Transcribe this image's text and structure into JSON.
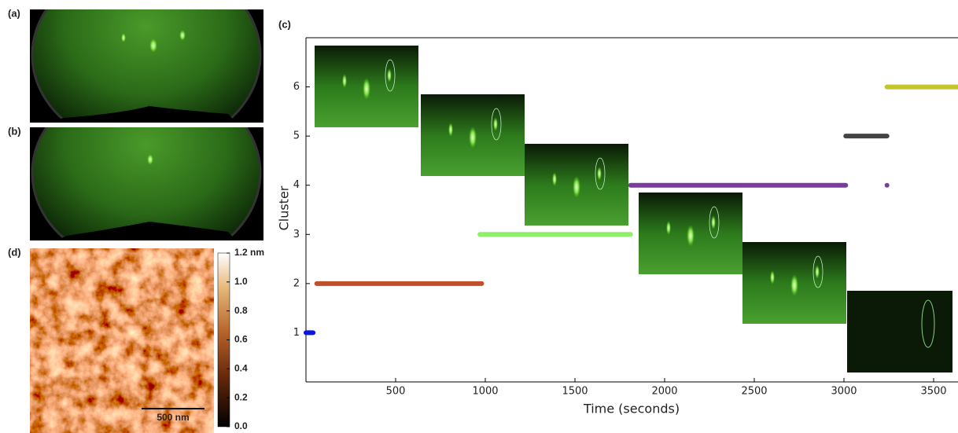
{
  "panel_labels": [
    "(a)",
    "(b)",
    "(c)",
    "(d)"
  ],
  "afm": {
    "scale_bar": "500 nm",
    "colorbar": {
      "lim": [
        0,
        1.2
      ],
      "ticks": [
        {
          "value": 0,
          "label": "0.0"
        },
        {
          "value": 0.2,
          "label": "0.2"
        },
        {
          "value": 0.4,
          "label": "0.4"
        },
        {
          "value": 0.6,
          "label": "0.6"
        },
        {
          "value": 0.8,
          "label": "0.8"
        },
        {
          "value": 1.0,
          "label": "1.0"
        },
        {
          "value": 1.2,
          "label": "1.2 nm"
        }
      ]
    }
  },
  "chart_data": {
    "type": "segments",
    "xlabel": "Time (seconds)",
    "ylabel": "Cluster",
    "xlim": [
      0,
      3636
    ],
    "ylim": [
      0,
      7
    ],
    "xticks": [
      500,
      1000,
      1500,
      2000,
      2500,
      3000,
      3500
    ],
    "yticks": [
      1,
      2,
      3,
      4,
      5,
      6
    ],
    "segments": [
      {
        "color": "#0a14e6",
        "x": [
          0,
          40
        ],
        "y": 1
      },
      {
        "color": "#c0502a",
        "x": [
          60,
          980
        ],
        "y": 2
      },
      {
        "color": "#8ef06a",
        "x": [
          970,
          1810
        ],
        "y": 3
      },
      {
        "color": "#7a3d9a",
        "x": [
          1810,
          3010
        ],
        "y": 4
      },
      {
        "color": "#444444",
        "x": [
          3010,
          3240
        ],
        "y": 5
      },
      {
        "color": "#c4c42c",
        "x": [
          3240,
          3636
        ],
        "y": 6
      }
    ],
    "points": [
      {
        "color": "#7a3d9a",
        "x": 3240,
        "y": 4
      }
    ]
  }
}
